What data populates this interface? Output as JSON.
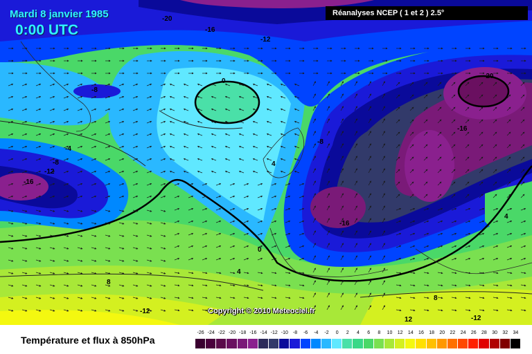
{
  "header": {
    "date": "Mardi 8 janvier 1985",
    "time": "0:00 UTC",
    "source": "Réanalyses NCEP ( 1 et 2 ) 2.5°"
  },
  "copyright": "Copyright © 2010 Meteociel.fr",
  "legend": {
    "title": "Température et flux à 850hPa",
    "scale": [
      {
        "value": "-26",
        "color": "#3a0030"
      },
      {
        "value": "-24",
        "color": "#4a003c"
      },
      {
        "value": "-22",
        "color": "#5a0a4a"
      },
      {
        "value": "-20",
        "color": "#6a1060"
      },
      {
        "value": "-18",
        "color": "#7a1a78"
      },
      {
        "value": "-16",
        "color": "#8a208e"
      },
      {
        "value": "-14",
        "color": "#2c2a5a"
      },
      {
        "value": "-12",
        "color": "#323a6a"
      },
      {
        "value": "-10",
        "color": "#0a0a9a"
      },
      {
        "value": "-8",
        "color": "#1a1ad8"
      },
      {
        "value": "-6",
        "color": "#0044ff"
      },
      {
        "value": "-4",
        "color": "#0088ff"
      },
      {
        "value": "-2",
        "color": "#2ab8ff"
      },
      {
        "value": "0",
        "color": "#60e8ff"
      },
      {
        "value": "2",
        "color": "#4ae0a8"
      },
      {
        "value": "4",
        "color": "#3ad888"
      },
      {
        "value": "6",
        "color": "#4ad868"
      },
      {
        "value": "8",
        "color": "#7ae050"
      },
      {
        "value": "10",
        "color": "#a8e838"
      },
      {
        "value": "12",
        "color": "#d4f020"
      },
      {
        "value": "14",
        "color": "#f4f810"
      },
      {
        "value": "16",
        "color": "#ffe000"
      },
      {
        "value": "18",
        "color": "#ffc000"
      },
      {
        "value": "20",
        "color": "#ff9800"
      },
      {
        "value": "22",
        "color": "#ff7000"
      },
      {
        "value": "24",
        "color": "#ff4800"
      },
      {
        "value": "26",
        "color": "#ff2000"
      },
      {
        "value": "28",
        "color": "#e00000"
      },
      {
        "value": "30",
        "color": "#b00000"
      },
      {
        "value": "32",
        "color": "#800000"
      },
      {
        "value": "34",
        "color": "#000000"
      }
    ]
  },
  "contour_labels": [
    "-20",
    "-16",
    "-12",
    "-8",
    "0",
    "-20",
    "-16",
    "-8",
    "-4",
    "-8",
    "-12",
    "-16",
    "4",
    "-16",
    "0",
    "4",
    "8",
    "-12",
    "8",
    "12",
    "-12",
    "4"
  ]
}
